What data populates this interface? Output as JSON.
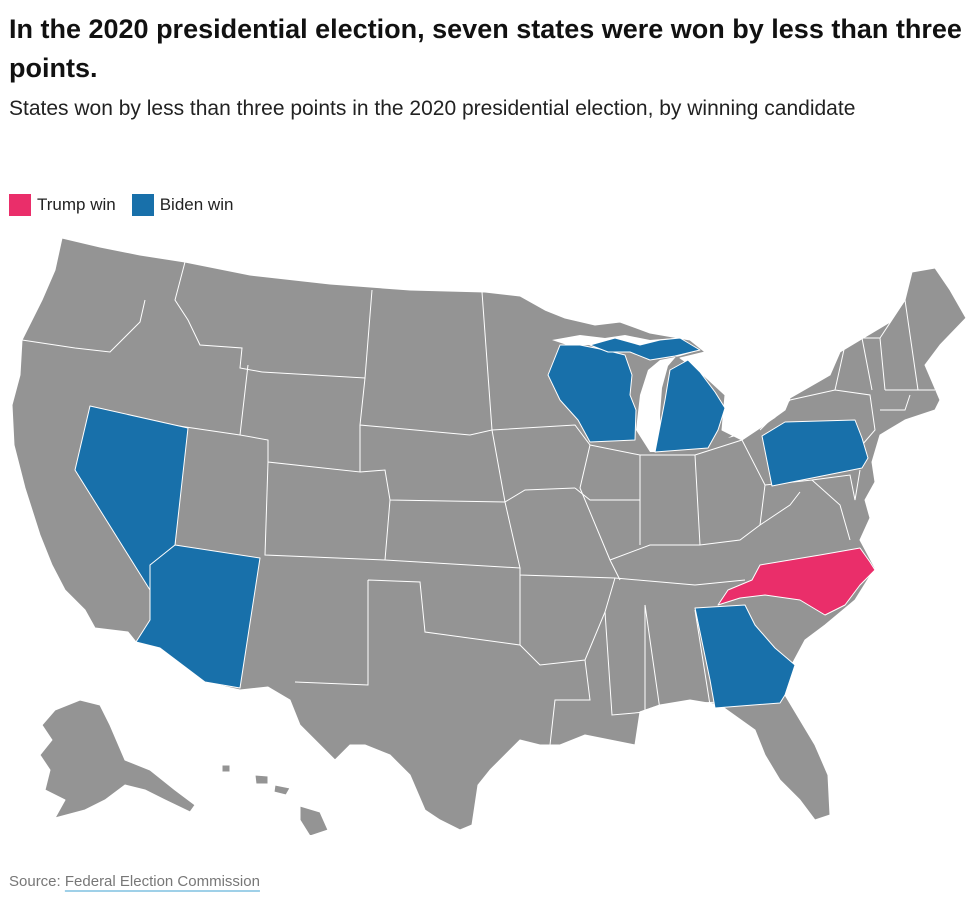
{
  "header": {
    "title": "In the 2020 presidential election, seven states were won by less than three points.",
    "subtitle": "States won by less than three points in the 2020 presidential election, by winning candidate"
  },
  "legend": [
    {
      "label": "Trump win",
      "color": "#ea2e6a"
    },
    {
      "label": "Biden win",
      "color": "#1870aa"
    }
  ],
  "colors": {
    "other_states": "#949494",
    "border": "#ffffff"
  },
  "map_data": {
    "type": "choropleth",
    "region": "United States",
    "highlighted_states": [
      {
        "state": "Nevada",
        "winner": "Biden"
      },
      {
        "state": "Arizona",
        "winner": "Biden"
      },
      {
        "state": "Wisconsin",
        "winner": "Biden"
      },
      {
        "state": "Michigan",
        "winner": "Biden"
      },
      {
        "state": "Pennsylvania",
        "winner": "Biden"
      },
      {
        "state": "Georgia",
        "winner": "Biden"
      },
      {
        "state": "North Carolina",
        "winner": "Trump"
      }
    ]
  },
  "footer": {
    "source_prefix": "Source: ",
    "source_link": "Federal Election Commission"
  }
}
